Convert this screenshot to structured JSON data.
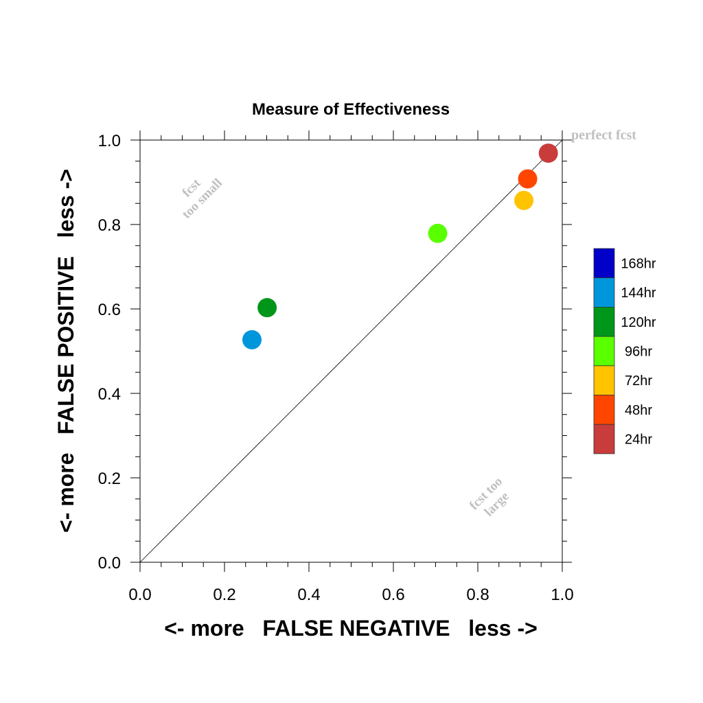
{
  "chart_data": {
    "type": "scatter",
    "title": "Measure of Effectiveness",
    "xlabel": "<- more   FALSE NEGATIVE   less ->",
    "ylabel": "<- more   FALSE POSITIVE   less ->",
    "xlim": [
      0.0,
      1.0
    ],
    "ylim": [
      0.0,
      1.0
    ],
    "x_ticks": [
      "0.0",
      "0.2",
      "0.4",
      "0.6",
      "0.8",
      "1.0"
    ],
    "y_ticks": [
      "0.0",
      "0.2",
      "0.4",
      "0.6",
      "0.8",
      "1.0"
    ],
    "grid": false,
    "legend_position": "right",
    "reference_line": {
      "from": [
        0,
        0
      ],
      "to": [
        1,
        1
      ]
    },
    "annotations": {
      "perfect": "perfect fcst",
      "too_small_line1": "fcst",
      "too_small_line2": "too small",
      "too_large_line1": "fcst too",
      "too_large_line2": "large"
    },
    "series": [
      {
        "name": "168hr",
        "color": "#0000c8",
        "points": []
      },
      {
        "name": "144hr",
        "color": "#0096dc",
        "points": [
          [
            0.265,
            0.527
          ]
        ]
      },
      {
        "name": "120hr",
        "color": "#009619",
        "points": [
          [
            0.301,
            0.603
          ]
        ]
      },
      {
        "name": "96hr",
        "color": "#5aff00",
        "points": [
          [
            0.705,
            0.779
          ]
        ]
      },
      {
        "name": "72hr",
        "color": "#ffc300",
        "points": [
          [
            0.909,
            0.857
          ]
        ]
      },
      {
        "name": "48hr",
        "color": "#ff4600",
        "points": [
          [
            0.918,
            0.908
          ]
        ]
      },
      {
        "name": "24hr",
        "color": "#c83c3c",
        "points": [
          [
            0.967,
            0.969
          ]
        ]
      }
    ]
  }
}
